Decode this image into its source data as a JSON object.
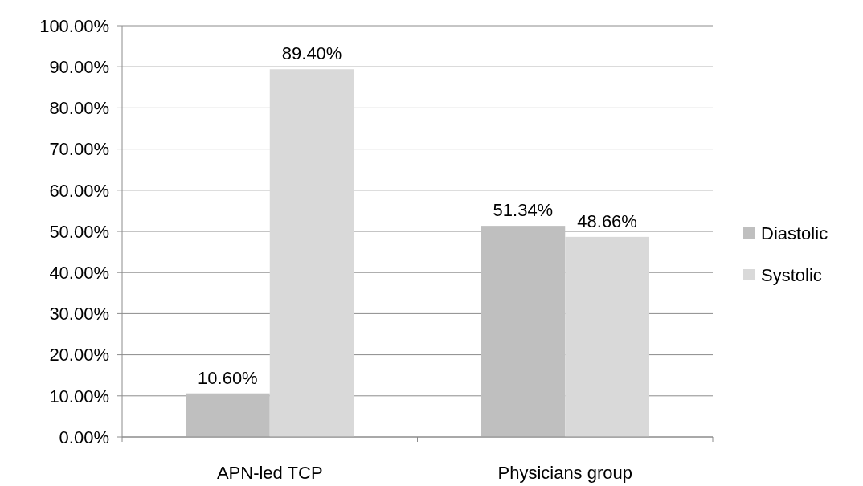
{
  "chart_data": {
    "type": "bar",
    "categories": [
      "APN-led TCP",
      "Physicians group"
    ],
    "series": [
      {
        "name": "Diastolic",
        "color": "#bfbfbf",
        "values": [
          10.6,
          51.34
        ],
        "value_labels": [
          "10.60%",
          "51.34%"
        ]
      },
      {
        "name": "Systolic",
        "color": "#d9d9d9",
        "values": [
          89.4,
          48.66
        ],
        "value_labels": [
          "89.40%",
          "48.66%"
        ]
      }
    ],
    "ylim": [
      0,
      100
    ],
    "yticks": [
      {
        "value": 0,
        "label": "0.00%"
      },
      {
        "value": 10,
        "label": "10.00%"
      },
      {
        "value": 20,
        "label": "20.00%"
      },
      {
        "value": 30,
        "label": "30.00%"
      },
      {
        "value": 40,
        "label": "40.00%"
      },
      {
        "value": 50,
        "label": "50.00%"
      },
      {
        "value": 60,
        "label": "60.00%"
      },
      {
        "value": 70,
        "label": "70.00%"
      },
      {
        "value": 80,
        "label": "80.00%"
      },
      {
        "value": 90,
        "label": "90.00%"
      },
      {
        "value": 100,
        "label": "100.00%"
      }
    ],
    "grid": "y",
    "legend": "right"
  }
}
